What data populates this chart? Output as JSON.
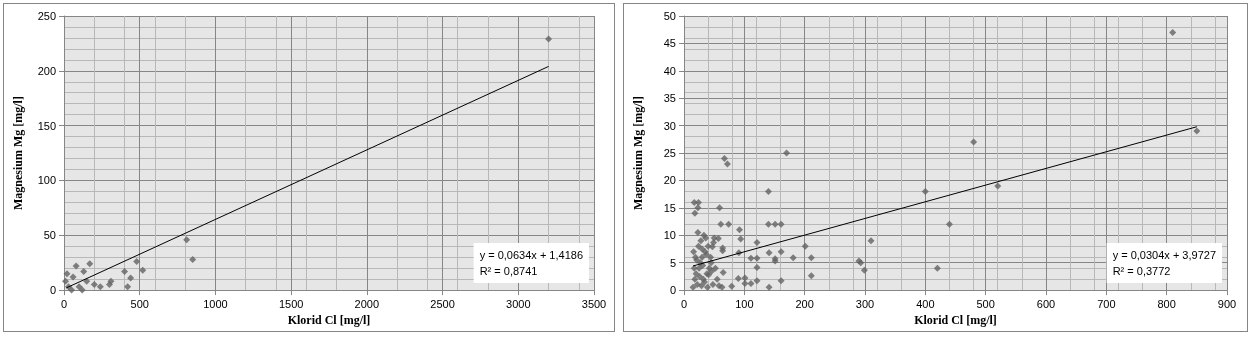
{
  "chart_data": [
    {
      "type": "scatter",
      "xlabel": "Klorid Cl [mg/l]",
      "ylabel": "Magnesium Mg [mg/l]",
      "xlim": [
        0,
        3500
      ],
      "xticks": [
        0,
        500,
        1000,
        1500,
        2000,
        2500,
        3000,
        3500
      ],
      "ylim": [
        0,
        250
      ],
      "yticks": [
        0,
        50,
        100,
        150,
        200,
        250
      ],
      "grid": true,
      "annotations": [
        "y = 0,0634x + 1,4186",
        "R² = 0,8741"
      ],
      "series": [
        {
          "color": "#636363",
          "marker": "diamond",
          "x": [
            20,
            80,
            170,
            60,
            130,
            150,
            100,
            30,
            200,
            300,
            310,
            400,
            420,
            440,
            480,
            520,
            810,
            850,
            3200,
            50,
            120,
            240,
            10
          ],
          "values": [
            15,
            22,
            24,
            12,
            17,
            8,
            3,
            3,
            5,
            5,
            8,
            17,
            3,
            11,
            26,
            18,
            46,
            28,
            229,
            0,
            0,
            3,
            8
          ]
        },
        {
          "type": "line",
          "color": "#000000",
          "marker": "none",
          "x": [
            15,
            3200
          ],
          "values": [
            2,
            204
          ]
        }
      ]
    },
    {
      "type": "scatter",
      "xlabel": "Klorid Cl [mg/l]",
      "ylabel": "Magnesium Mg [mg/l]",
      "xlim": [
        0,
        900
      ],
      "xticks": [
        0,
        100,
        200,
        300,
        400,
        500,
        600,
        700,
        800,
        900
      ],
      "ylim": [
        0,
        50
      ],
      "yticks": [
        0,
        5,
        10,
        15,
        20,
        25,
        30,
        35,
        40,
        45,
        50
      ],
      "grid": true,
      "annotations": [
        "y = 0,0304x + 3,9727",
        "R² = 0,3772"
      ],
      "series": [
        {
          "color": "#636363",
          "marker": "diamond",
          "x": [
            170,
            67,
            72,
            140,
            17,
            24,
            18,
            23,
            59,
            61,
            74,
            140,
            151,
            161,
            92,
            94,
            121,
            201,
            310,
            91,
            111,
            121,
            141,
            151,
            151,
            161,
            181,
            211,
            211,
            290,
            293,
            299,
            161,
            141,
            121,
            121,
            111,
            101,
            101,
            90,
            79,
            63,
            58,
            65,
            64,
            64,
            57,
            49,
            47,
            15,
            18,
            20,
            22,
            25,
            27,
            30,
            32,
            35,
            38,
            40,
            42,
            45,
            48,
            28,
            33,
            36,
            24,
            19,
            16,
            21,
            26,
            29,
            31,
            34,
            37,
            39,
            41,
            44,
            46,
            50,
            52,
            55,
            23,
            17,
            30,
            400,
            420,
            440,
            480,
            520,
            810,
            850
          ],
          "values": [
            25,
            24,
            23,
            18,
            16,
            16,
            14,
            15,
            15,
            12,
            12,
            12,
            12,
            12,
            11,
            9.3,
            8.7,
            8,
            9,
            6.8,
            5.8,
            5.8,
            6.8,
            5.7,
            5.3,
            7,
            5.9,
            5.9,
            2.6,
            5.3,
            5,
            3.6,
            1.7,
            0.5,
            4.1,
            1.7,
            1.2,
            2.2,
            1.2,
            2.1,
            0.7,
            0.5,
            0.8,
            3.2,
            7.7,
            7.2,
            9.4,
            8.7,
            7.9,
            0.5,
            2,
            3,
            1,
            4,
            5,
            6,
            2,
            7,
            3,
            8,
            4,
            5,
            1,
            9,
            10,
            9.5,
            8,
            6,
            7,
            5.5,
            2.5,
            0.8,
            4.5,
            1.5,
            6.5,
            0.5,
            2.8,
            6,
            3.5,
            9.5,
            4,
            2,
            10.5,
            4,
            7.5,
            18,
            4,
            12,
            27,
            19,
            47,
            29
          ]
        },
        {
          "type": "line",
          "color": "#000000",
          "marker": "none",
          "x": [
            15,
            850
          ],
          "values": [
            4.4,
            29.8
          ]
        }
      ]
    }
  ]
}
